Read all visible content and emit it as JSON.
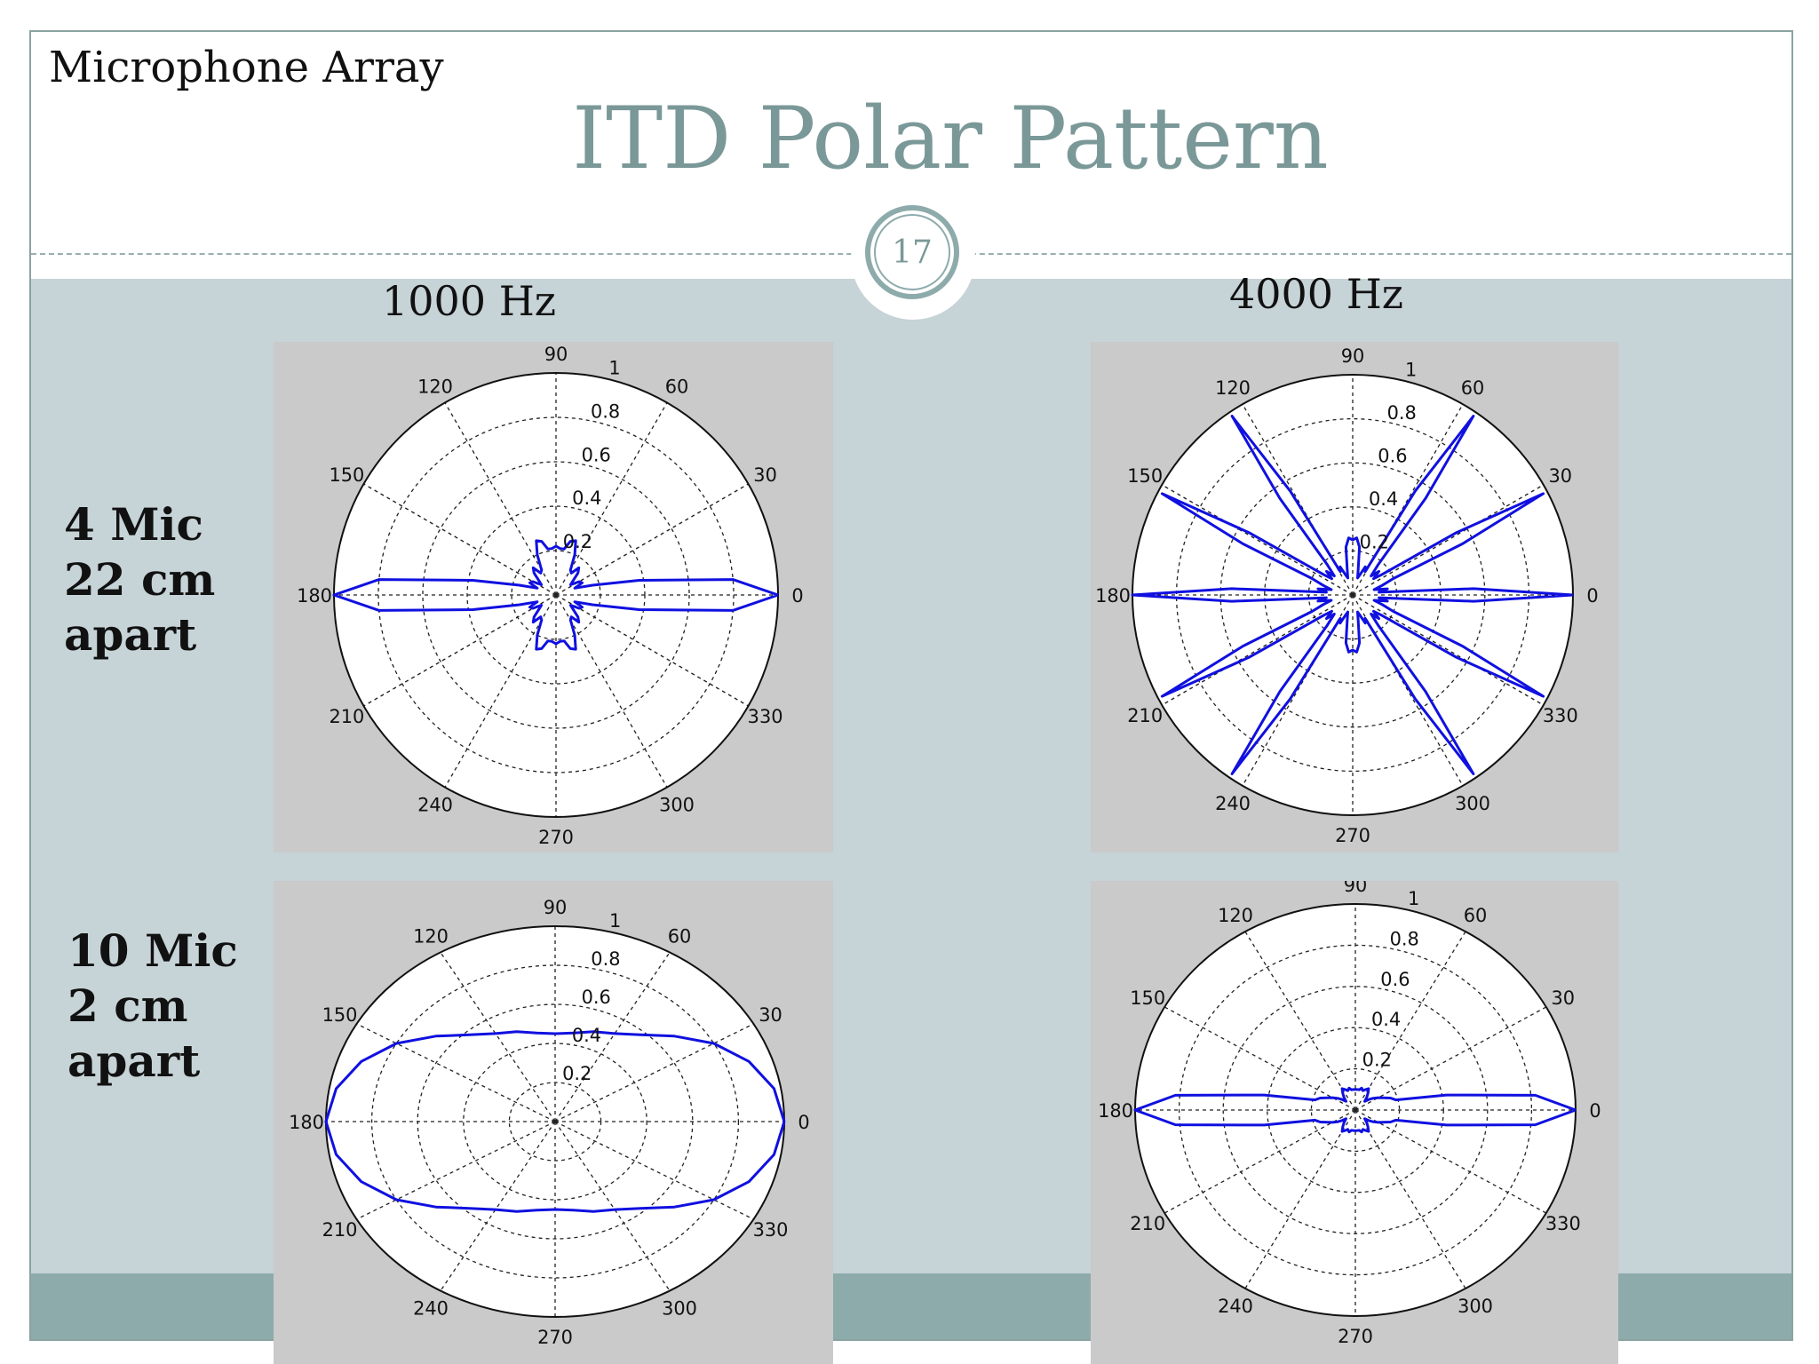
{
  "slide": {
    "section_title": "Microphone Array",
    "title": "ITD Polar Pattern",
    "page_number": "17",
    "columns": [
      "1000 Hz",
      "4000 Hz"
    ],
    "rows": [
      [
        "4 Mic",
        "22 cm",
        "apart"
      ],
      [
        "10 Mic",
        "2 cm",
        "apart"
      ]
    ]
  },
  "chart_data": [
    {
      "type": "polar-line",
      "panel": "4 Mic 22 cm apart, 1000 Hz",
      "rlim": [
        0,
        1
      ],
      "r_ticks": [
        "0.2",
        "0.4",
        "0.6",
        "0.8",
        "1"
      ],
      "theta_ticks": [
        "0",
        "30",
        "60",
        "90",
        "120",
        "150",
        "180",
        "210",
        "240",
        "270",
        "300",
        "330"
      ],
      "grid": true,
      "color": "#1010e0",
      "series": [
        {
          "theta_deg": [
            0,
            5,
            10,
            15,
            20,
            25,
            30,
            35,
            40,
            45,
            50,
            55,
            60,
            65,
            70,
            75,
            80,
            85,
            90,
            95,
            100,
            105,
            110,
            115,
            120,
            125,
            130,
            135,
            140,
            145,
            150,
            155,
            160,
            165,
            170,
            175,
            180,
            185,
            190,
            195,
            200,
            205,
            210,
            215,
            220,
            225,
            230,
            235,
            240,
            245,
            250,
            255,
            260,
            265,
            270,
            275,
            280,
            285,
            290,
            295,
            300,
            305,
            310,
            315,
            320,
            325,
            330,
            335,
            340,
            345,
            350,
            355,
            360
          ],
          "r": [
            1.0,
            0.8,
            0.38,
            0.17,
            0.09,
            0.13,
            0.12,
            0.08,
            0.1,
            0.14,
            0.16,
            0.12,
            0.13,
            0.2,
            0.26,
            0.25,
            0.21,
            0.21,
            0.22,
            0.21,
            0.21,
            0.25,
            0.26,
            0.2,
            0.13,
            0.12,
            0.16,
            0.14,
            0.1,
            0.08,
            0.12,
            0.13,
            0.09,
            0.17,
            0.38,
            0.8,
            1.0,
            0.8,
            0.38,
            0.17,
            0.09,
            0.13,
            0.12,
            0.08,
            0.1,
            0.14,
            0.16,
            0.12,
            0.13,
            0.2,
            0.26,
            0.25,
            0.21,
            0.21,
            0.22,
            0.21,
            0.21,
            0.25,
            0.26,
            0.2,
            0.13,
            0.12,
            0.16,
            0.14,
            0.1,
            0.08,
            0.12,
            0.13,
            0.09,
            0.17,
            0.38,
            0.8,
            1.0
          ]
        }
      ]
    },
    {
      "type": "polar-line",
      "panel": "4 Mic 22 cm apart, 4000 Hz",
      "rlim": [
        0,
        1
      ],
      "r_ticks": [
        "0.2",
        "0.4",
        "0.6",
        "0.8",
        "1"
      ],
      "theta_ticks": [
        "0",
        "30",
        "60",
        "90",
        "120",
        "150",
        "180",
        "210",
        "240",
        "270",
        "300",
        "330"
      ],
      "grid": true,
      "color": "#1010e0",
      "series": [
        {
          "theta_deg": [
            0,
            3,
            6,
            10,
            14,
            18,
            22,
            25,
            28,
            31,
            35,
            38,
            42,
            46,
            50,
            53,
            56,
            59,
            62,
            66,
            70,
            74,
            78,
            82,
            86,
            90,
            94,
            98,
            102,
            106,
            110,
            114,
            118,
            121,
            124,
            127,
            130,
            134,
            138,
            142,
            145,
            149,
            152,
            155,
            158,
            162,
            166,
            170,
            174,
            177,
            180,
            183,
            186,
            190,
            194,
            198,
            202,
            205,
            208,
            211,
            215,
            218,
            222,
            226,
            230,
            233,
            236,
            239,
            242,
            246,
            250,
            254,
            258,
            262,
            266,
            270,
            274,
            278,
            282,
            286,
            290,
            294,
            298,
            301,
            304,
            307,
            310,
            314,
            318,
            322,
            325,
            329,
            332,
            335,
            338,
            342,
            346,
            350,
            354,
            357,
            360
          ],
          "r": [
            1.0,
            0.55,
            0.12,
            0.16,
            0.1,
            0.14,
            0.2,
            0.55,
            0.98,
            0.55,
            0.16,
            0.12,
            0.16,
            0.12,
            0.18,
            0.55,
            0.98,
            0.55,
            0.12,
            0.14,
            0.1,
            0.08,
            0.12,
            0.22,
            0.26,
            0.25,
            0.26,
            0.22,
            0.12,
            0.08,
            0.1,
            0.14,
            0.12,
            0.55,
            0.98,
            0.55,
            0.18,
            0.12,
            0.16,
            0.12,
            0.16,
            0.55,
            0.98,
            0.55,
            0.2,
            0.14,
            0.1,
            0.16,
            0.12,
            0.55,
            1.0,
            0.55,
            0.12,
            0.16,
            0.1,
            0.14,
            0.2,
            0.55,
            0.98,
            0.55,
            0.16,
            0.12,
            0.16,
            0.12,
            0.18,
            0.55,
            0.98,
            0.55,
            0.12,
            0.14,
            0.1,
            0.08,
            0.12,
            0.22,
            0.26,
            0.25,
            0.26,
            0.22,
            0.12,
            0.08,
            0.1,
            0.14,
            0.12,
            0.55,
            0.98,
            0.55,
            0.18,
            0.12,
            0.16,
            0.12,
            0.16,
            0.55,
            0.98,
            0.55,
            0.2,
            0.14,
            0.1,
            0.16,
            0.12,
            0.55,
            1.0
          ]
        }
      ]
    },
    {
      "type": "polar-line",
      "panel": "10 Mic 2 cm apart, 1000 Hz",
      "rlim": [
        0,
        1
      ],
      "r_ticks": [
        "0.2",
        "0.4",
        "0.6",
        "0.8",
        "1"
      ],
      "theta_ticks": [
        "0",
        "30",
        "60",
        "90",
        "120",
        "150",
        "180",
        "210",
        "240",
        "270",
        "300",
        "330"
      ],
      "grid": true,
      "color": "#1010e0",
      "series": [
        {
          "theta_deg": [
            0,
            10,
            20,
            30,
            40,
            50,
            60,
            70,
            80,
            90,
            100,
            110,
            120,
            130,
            140,
            150,
            160,
            170,
            180,
            190,
            200,
            210,
            220,
            230,
            240,
            250,
            260,
            270,
            280,
            290,
            300,
            310,
            320,
            330,
            340,
            350,
            360
          ],
          "r": [
            1.0,
            0.97,
            0.9,
            0.8,
            0.68,
            0.58,
            0.52,
            0.49,
            0.46,
            0.45,
            0.46,
            0.49,
            0.52,
            0.58,
            0.68,
            0.8,
            0.9,
            0.97,
            1.0,
            0.97,
            0.9,
            0.8,
            0.68,
            0.58,
            0.52,
            0.49,
            0.46,
            0.45,
            0.46,
            0.49,
            0.52,
            0.58,
            0.68,
            0.8,
            0.9,
            0.97,
            1.0
          ]
        }
      ]
    },
    {
      "type": "polar-line",
      "panel": "10 Mic 2 cm apart, 4000 Hz",
      "rlim": [
        0,
        1
      ],
      "r_ticks": [
        "0.2",
        "0.4",
        "0.6",
        "0.8",
        "1"
      ],
      "theta_ticks": [
        "0",
        "30",
        "60",
        "90",
        "120",
        "150",
        "180",
        "210",
        "240",
        "270",
        "300",
        "330"
      ],
      "grid": true,
      "color": "#1010e0",
      "series": [
        {
          "theta_deg": [
            0,
            5,
            10,
            15,
            20,
            25,
            30,
            35,
            40,
            45,
            50,
            55,
            60,
            65,
            70,
            75,
            80,
            85,
            90,
            95,
            100,
            105,
            110,
            115,
            120,
            125,
            130,
            135,
            140,
            145,
            150,
            155,
            160,
            165,
            170,
            175,
            180,
            185,
            190,
            195,
            200,
            205,
            210,
            215,
            220,
            225,
            230,
            235,
            240,
            245,
            250,
            255,
            260,
            265,
            270,
            275,
            280,
            285,
            290,
            295,
            300,
            305,
            310,
            315,
            320,
            325,
            330,
            335,
            340,
            345,
            350,
            355,
            360
          ],
          "r": [
            1.0,
            0.82,
            0.42,
            0.19,
            0.17,
            0.14,
            0.12,
            0.1,
            0.08,
            0.06,
            0.08,
            0.1,
            0.12,
            0.11,
            0.1,
            0.11,
            0.1,
            0.1,
            0.1,
            0.1,
            0.1,
            0.11,
            0.1,
            0.11,
            0.12,
            0.1,
            0.08,
            0.06,
            0.08,
            0.1,
            0.12,
            0.14,
            0.17,
            0.19,
            0.42,
            0.82,
            1.0,
            0.82,
            0.42,
            0.19,
            0.17,
            0.14,
            0.12,
            0.1,
            0.08,
            0.06,
            0.08,
            0.1,
            0.12,
            0.11,
            0.1,
            0.11,
            0.1,
            0.1,
            0.1,
            0.1,
            0.1,
            0.11,
            0.1,
            0.11,
            0.12,
            0.1,
            0.08,
            0.06,
            0.08,
            0.1,
            0.12,
            0.14,
            0.17,
            0.19,
            0.42,
            0.82,
            1.0
          ]
        }
      ]
    }
  ]
}
